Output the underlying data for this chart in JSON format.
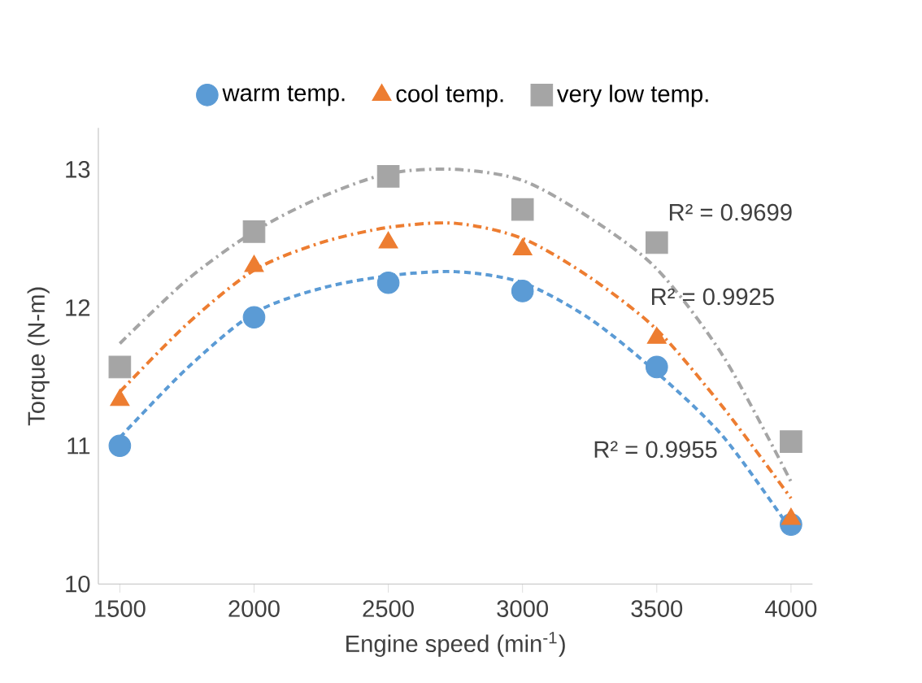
{
  "chart_data": {
    "type": "scatter",
    "xlabel": "Engine speed (min$^{-1}$)",
    "ylabel": "Torque (N-m)",
    "x": [
      1500,
      2000,
      2500,
      3000,
      3500,
      4000
    ],
    "series": [
      {
        "name": "warm temp.",
        "color": "#5b9bd5",
        "marker": "circle",
        "values": [
          11.0,
          11.93,
          12.18,
          12.12,
          11.57,
          10.43
        ]
      },
      {
        "name": "cool temp.",
        "color": "#ed7d31",
        "marker": "triangle",
        "values": [
          11.33,
          12.3,
          12.47,
          12.42,
          11.78,
          10.47
        ]
      },
      {
        "name": "very low temp.",
        "color": "#a5a5a5",
        "marker": "square",
        "values": [
          11.57,
          12.55,
          12.95,
          12.71,
          12.47,
          11.03
        ]
      },
      {
        "type": "line",
        "color": "#5b9bd5",
        "line_style": "dashed",
        "x": [
          1500,
          1750,
          2000,
          2250,
          2500,
          2750,
          3000,
          3250,
          3500,
          3750,
          4000
        ],
        "values": [
          11.06,
          11.56,
          11.96,
          12.14,
          12.23,
          12.26,
          12.18,
          11.92,
          11.53,
          11.06,
          10.39
        ]
      },
      {
        "type": "line",
        "color": "#ed7d31",
        "line_style": "dashdot",
        "x": [
          1500,
          1750,
          2000,
          2250,
          2500,
          2750,
          3000,
          3250,
          3500,
          3750,
          4000
        ],
        "values": [
          11.39,
          11.88,
          12.27,
          12.47,
          12.58,
          12.61,
          12.5,
          12.22,
          11.84,
          11.27,
          10.62
        ]
      },
      {
        "type": "line",
        "color": "#a5a5a5",
        "line_style": "dashdot",
        "x": [
          1500,
          1750,
          2000,
          2250,
          2500,
          2750,
          3000,
          3250,
          3500,
          3750,
          4000
        ],
        "values": [
          11.74,
          12.2,
          12.55,
          12.8,
          12.97,
          13.0,
          12.92,
          12.65,
          12.28,
          11.64,
          10.74
        ]
      }
    ],
    "annotations": [
      "R² = 0.9699",
      "R² = 0.9925",
      "R² = 0.9955"
    ],
    "xlim": [
      1420,
      4080
    ],
    "ylim": [
      10,
      13.3
    ],
    "xticks": [
      1500,
      2000,
      2500,
      3000,
      3500,
      4000
    ],
    "yticks": [
      10,
      11,
      12,
      13
    ],
    "grid": false,
    "legend": "top"
  }
}
